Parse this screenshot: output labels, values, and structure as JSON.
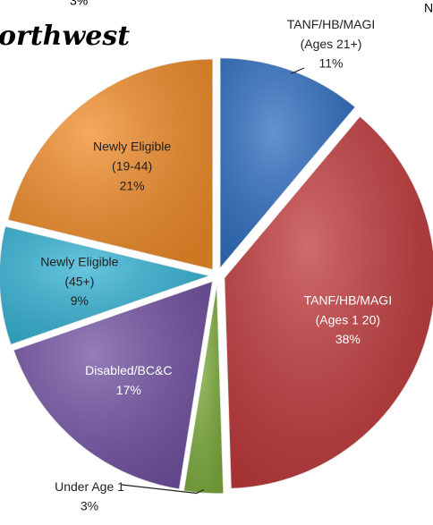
{
  "chart_data": {
    "type": "pie",
    "title": "orthwest",
    "annotations": [
      "3%",
      "N"
    ],
    "categories": [
      "TANF/HB/MAGI (Ages 21+)",
      "TANF/HB/MAGI (Ages 1 20)",
      "Under Age 1",
      "Disabled/BC&C",
      "Newly Eligible (45+)",
      "Newly Eligible (19-44)"
    ],
    "values": [
      11,
      38,
      3,
      17,
      9,
      21
    ],
    "value_labels": [
      "11%",
      "38%",
      "3%",
      "17%",
      "9%",
      "21%"
    ],
    "colors": [
      "#2f6fc2",
      "#c0393b",
      "#7fae3e",
      "#7252a3",
      "#36b4d6",
      "#f28d2a"
    ]
  }
}
